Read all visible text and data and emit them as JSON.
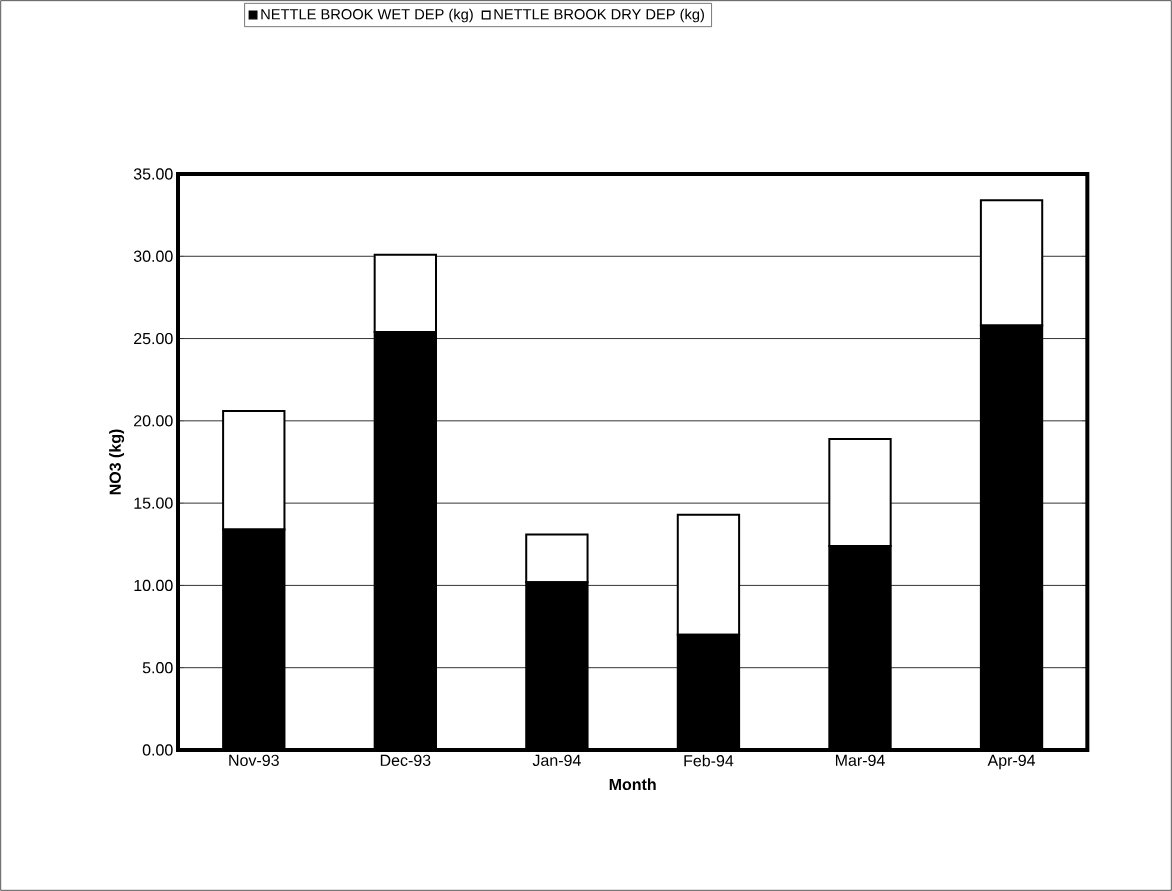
{
  "chart_data": {
    "type": "bar",
    "stacked": true,
    "xlabel": "Month",
    "ylabel": "NO3  (kg)",
    "categories": [
      "Nov-93",
      "Dec-93",
      "Jan-94",
      "Feb-94",
      "Mar-94",
      "Apr-94"
    ],
    "series": [
      {
        "name": "NETTLE BROOK WET DEP (kg)",
        "color": "#000000",
        "values": [
          13.4,
          25.4,
          10.2,
          7.0,
          12.4,
          25.8
        ]
      },
      {
        "name": "NETTLE BROOK DRY DEP (kg)",
        "color": "#ffffff",
        "values": [
          7.2,
          4.7,
          2.9,
          7.3,
          6.5,
          7.6
        ]
      }
    ],
    "ylim": [
      0,
      35
    ],
    "yticks": [
      {
        "value": 0,
        "label": "0.00"
      },
      {
        "value": 5,
        "label": "5.00"
      },
      {
        "value": 10,
        "label": "10.00"
      },
      {
        "value": 15,
        "label": "15.00"
      },
      {
        "value": 20,
        "label": "20.00"
      },
      {
        "value": 25,
        "label": "25.00"
      },
      {
        "value": 30,
        "label": "30.00"
      },
      {
        "value": 35,
        "label": "35.00"
      }
    ],
    "grid": "y",
    "legend": "top"
  }
}
